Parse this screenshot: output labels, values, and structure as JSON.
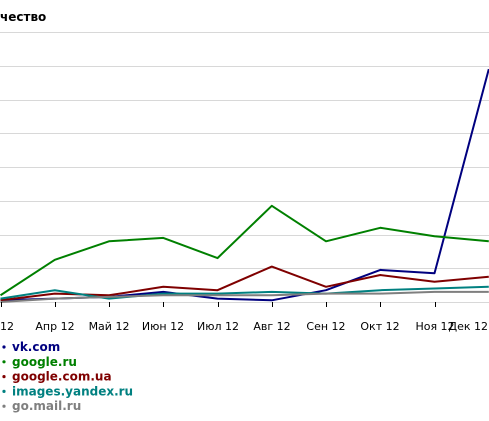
{
  "chart_data": {
    "type": "line",
    "title": "",
    "ylabel": "чество",
    "xlabel": "",
    "grid": true,
    "legend_position": "bottom-left",
    "categories": [
      "12",
      "Апр 12",
      "Май 12",
      "Июн 12",
      "Июл 12",
      "Авг 12",
      "Сен 12",
      "Окт 12",
      "Ноя 12",
      "Дек 12"
    ],
    "x": [
      3,
      4,
      5,
      6,
      7,
      8,
      9,
      10,
      11,
      12
    ],
    "ylim": [
      0,
      8
    ],
    "series": [
      {
        "name": "vk.com",
        "color": "#00007f",
        "x": [
          3,
          4,
          5,
          6,
          7,
          8,
          9,
          10,
          11,
          12
        ],
        "values": [
          0.05,
          0.1,
          0.15,
          0.3,
          0.1,
          0.05,
          0.35,
          0.95,
          0.85,
          6.9
        ]
      },
      {
        "name": "google.ru",
        "color": "#008000",
        "x": [
          3,
          4,
          5,
          6,
          7,
          8,
          9,
          10,
          11,
          12
        ],
        "values": [
          0.2,
          1.25,
          1.8,
          1.9,
          1.3,
          2.85,
          1.8,
          2.2,
          1.95,
          1.8
        ]
      },
      {
        "name": "google.com.ua",
        "color": "#7f0000",
        "x": [
          3,
          4,
          5,
          6,
          7,
          8,
          9,
          10,
          11,
          12
        ],
        "values": [
          0.05,
          0.25,
          0.2,
          0.45,
          0.35,
          1.05,
          0.45,
          0.8,
          0.6,
          0.75
        ]
      },
      {
        "name": "images.yandex.ru",
        "color": "#008080",
        "x": [
          3,
          4,
          5,
          6,
          7,
          8,
          9,
          10,
          11,
          12
        ],
        "values": [
          0.1,
          0.35,
          0.1,
          0.25,
          0.25,
          0.3,
          0.25,
          0.35,
          0.4,
          0.45
        ]
      },
      {
        "name": "go.mail.ru",
        "color": "#7f7f7f",
        "x": [
          3,
          4,
          5,
          6,
          7,
          8,
          9,
          10,
          11,
          12
        ],
        "values": [
          0.0,
          0.1,
          0.15,
          0.2,
          0.2,
          0.2,
          0.25,
          0.25,
          0.3,
          0.3
        ]
      }
    ]
  }
}
